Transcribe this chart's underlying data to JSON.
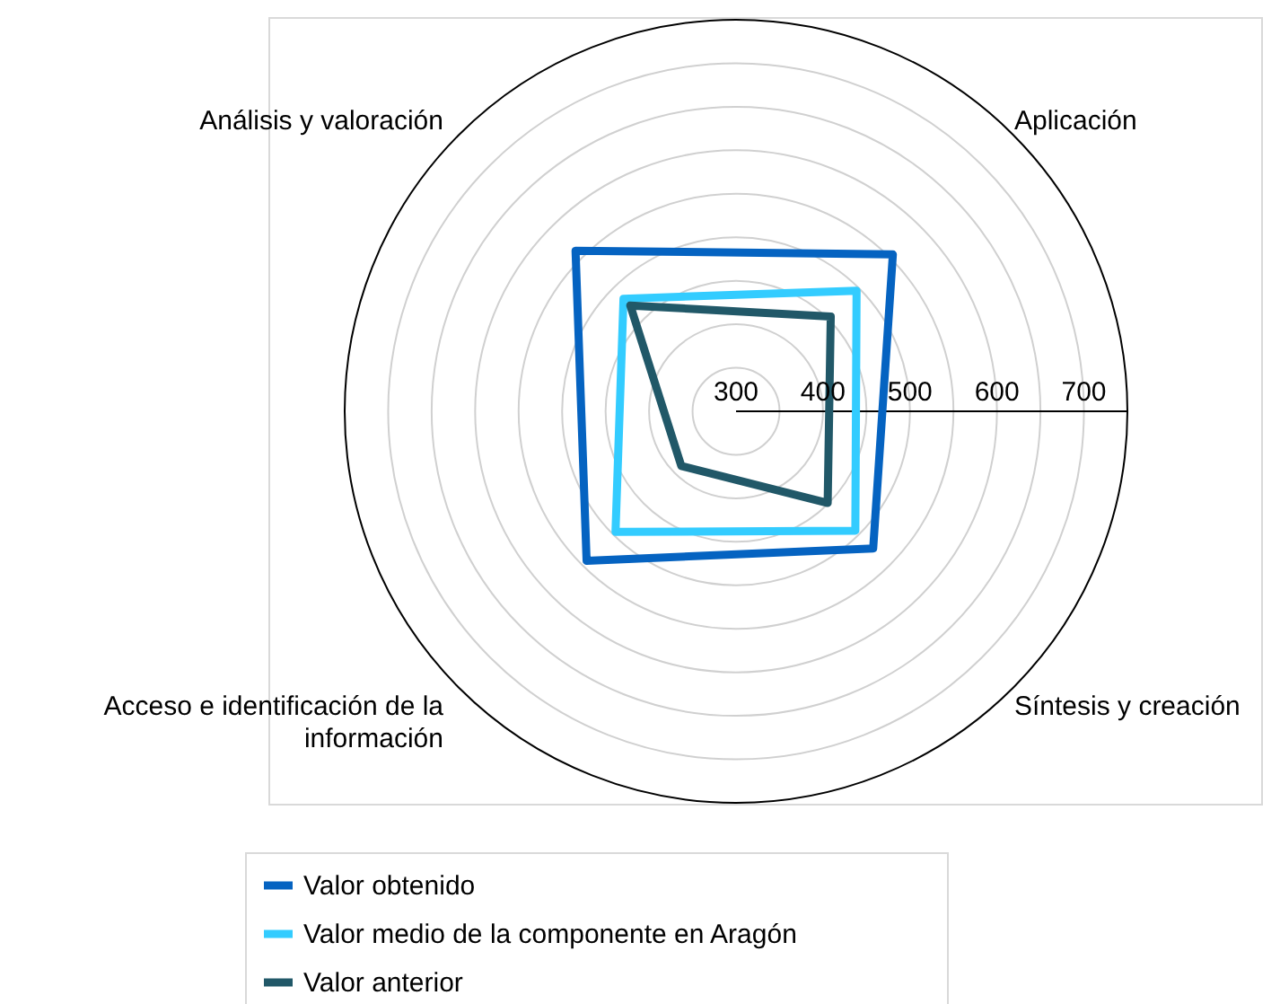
{
  "chart_data": {
    "type": "radar",
    "categories": [
      "Aplicación",
      "Síntesis y creación",
      "Acceso e identificación de la información",
      "Análisis y valoración"
    ],
    "series": [
      {
        "name": "Valor obtenido",
        "color": "#0563c1",
        "values": [
          555,
          523,
          543,
          561
        ]
      },
      {
        "name": "Valor medio de la componente en Aragón",
        "color": "#33ccff",
        "values": [
          496,
          494,
          496,
          483
        ]
      },
      {
        "name": "Valor anterior",
        "color": "#215868",
        "values": [
          454,
          449,
          389,
          472
        ]
      }
    ],
    "ylim": [
      300,
      750
    ],
    "yticks": [
      300,
      400,
      500,
      600,
      700
    ],
    "grid": true,
    "legend": "bottom"
  }
}
